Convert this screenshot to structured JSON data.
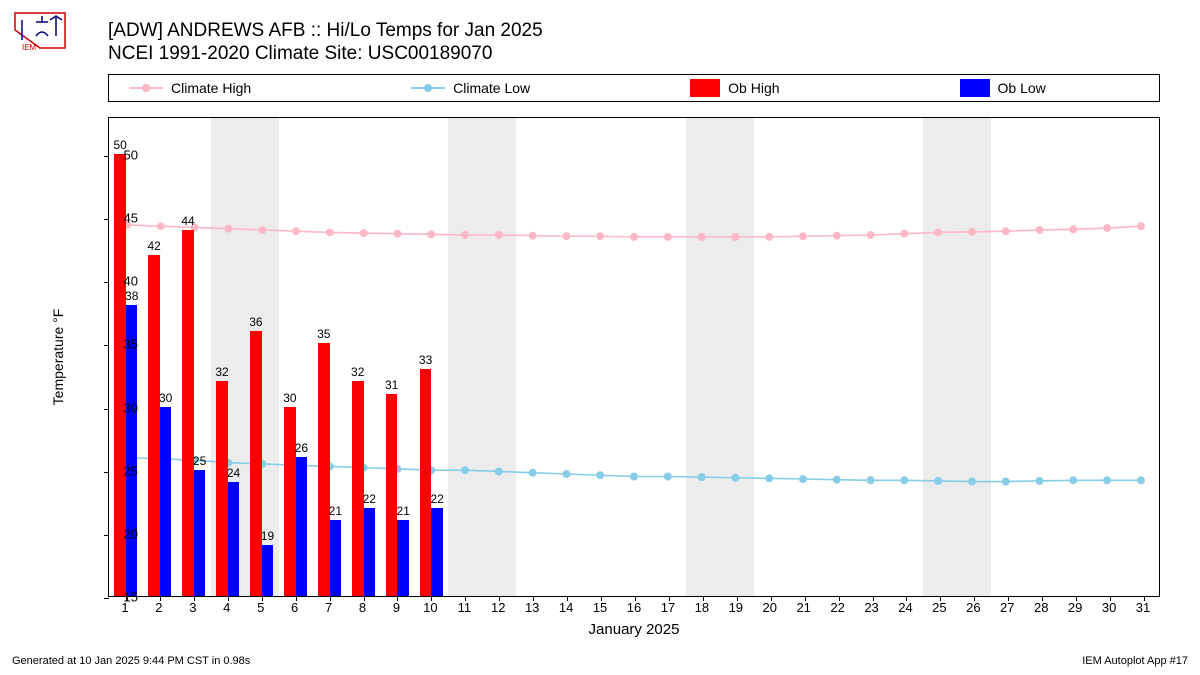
{
  "title_line1": "[ADW] ANDREWS AFB :: Hi/Lo Temps for Jan 2025",
  "title_line2": "NCEI 1991-2020 Climate Site: USC00189070",
  "ylabel": "Temperature °F",
  "xlabel": "January 2025",
  "footer_left": "Generated at 10 Jan 2025 9:44 PM CST in 0.98s",
  "footer_right": "IEM Autoplot App #17",
  "legend": {
    "climate_high": "Climate High",
    "climate_low": "Climate Low",
    "ob_high": "Ob High",
    "ob_low": "Ob Low"
  },
  "colors": {
    "climate_high": "#fcb8c6",
    "climate_low": "#87cde8",
    "ob_high": "#ff0000",
    "ob_low": "#0000ff",
    "weekend_band": "#ececec",
    "axis": "#000000",
    "background": "#ffffff"
  },
  "chart": {
    "type": "bar_and_line",
    "xlim": [
      0.5,
      31.5
    ],
    "ylim": [
      15,
      53
    ],
    "yticks": [
      15,
      20,
      25,
      30,
      35,
      40,
      45,
      50
    ],
    "xticks": [
      1,
      2,
      3,
      4,
      5,
      6,
      7,
      8,
      9,
      10,
      11,
      12,
      13,
      14,
      15,
      16,
      17,
      18,
      19,
      20,
      21,
      22,
      23,
      24,
      25,
      26,
      27,
      28,
      29,
      30,
      31
    ],
    "days": 31,
    "weekend_days": [
      4,
      5,
      11,
      12,
      18,
      19,
      25,
      26
    ],
    "bar_width": 0.34,
    "marker_radius": 4,
    "line_width": 1.6,
    "title_fontsize": 19,
    "label_fontsize": 14,
    "tick_fontsize": 13,
    "barlabel_fontsize": 12,
    "ob_high": [
      50,
      42,
      44,
      32,
      36,
      30,
      35,
      32,
      31,
      33
    ],
    "ob_low": [
      38,
      30,
      25,
      24,
      19,
      26,
      21,
      22,
      21,
      22
    ],
    "climate_high": [
      44.5,
      44.4,
      44.3,
      44.2,
      44.1,
      44.0,
      43.9,
      43.85,
      43.8,
      43.75,
      43.7,
      43.7,
      43.65,
      43.6,
      43.6,
      43.55,
      43.55,
      43.55,
      43.55,
      43.55,
      43.6,
      43.65,
      43.7,
      43.8,
      43.9,
      43.95,
      44.0,
      44.1,
      44.15,
      44.25,
      44.4
    ],
    "climate_low": [
      26.0,
      25.9,
      25.8,
      25.6,
      25.5,
      25.4,
      25.3,
      25.2,
      25.1,
      25.0,
      25.0,
      24.9,
      24.8,
      24.7,
      24.6,
      24.5,
      24.5,
      24.45,
      24.4,
      24.35,
      24.3,
      24.25,
      24.2,
      24.2,
      24.15,
      24.1,
      24.1,
      24.15,
      24.2,
      24.2,
      24.2
    ]
  }
}
